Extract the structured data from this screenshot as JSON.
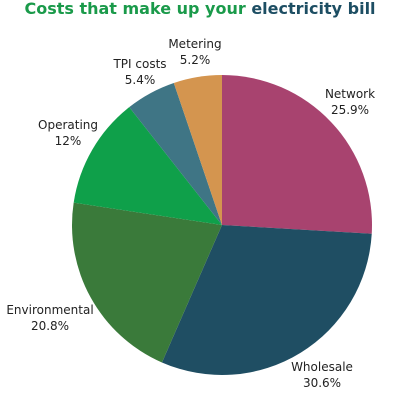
{
  "chart_data": {
    "type": "pie",
    "title": [
      "Costs that make up your",
      "electricity bill"
    ],
    "title_colors": [
      "#1a9a4a",
      "#1d4e63"
    ],
    "categories": [
      "Network",
      "Wholesale",
      "Environmental",
      "Operating",
      "TPI costs",
      "Metering"
    ],
    "values": [
      25.9,
      30.6,
      20.8,
      12,
      5.4,
      5.2
    ],
    "value_labels": [
      "25.9%",
      "30.6%",
      "20.8%",
      "12%",
      "5.4%",
      "5.2%"
    ],
    "colors": [
      "#a8436f",
      "#1f4e63",
      "#3a7a3a",
      "#0fa04a",
      "#3f7585",
      "#d4954f"
    ]
  }
}
